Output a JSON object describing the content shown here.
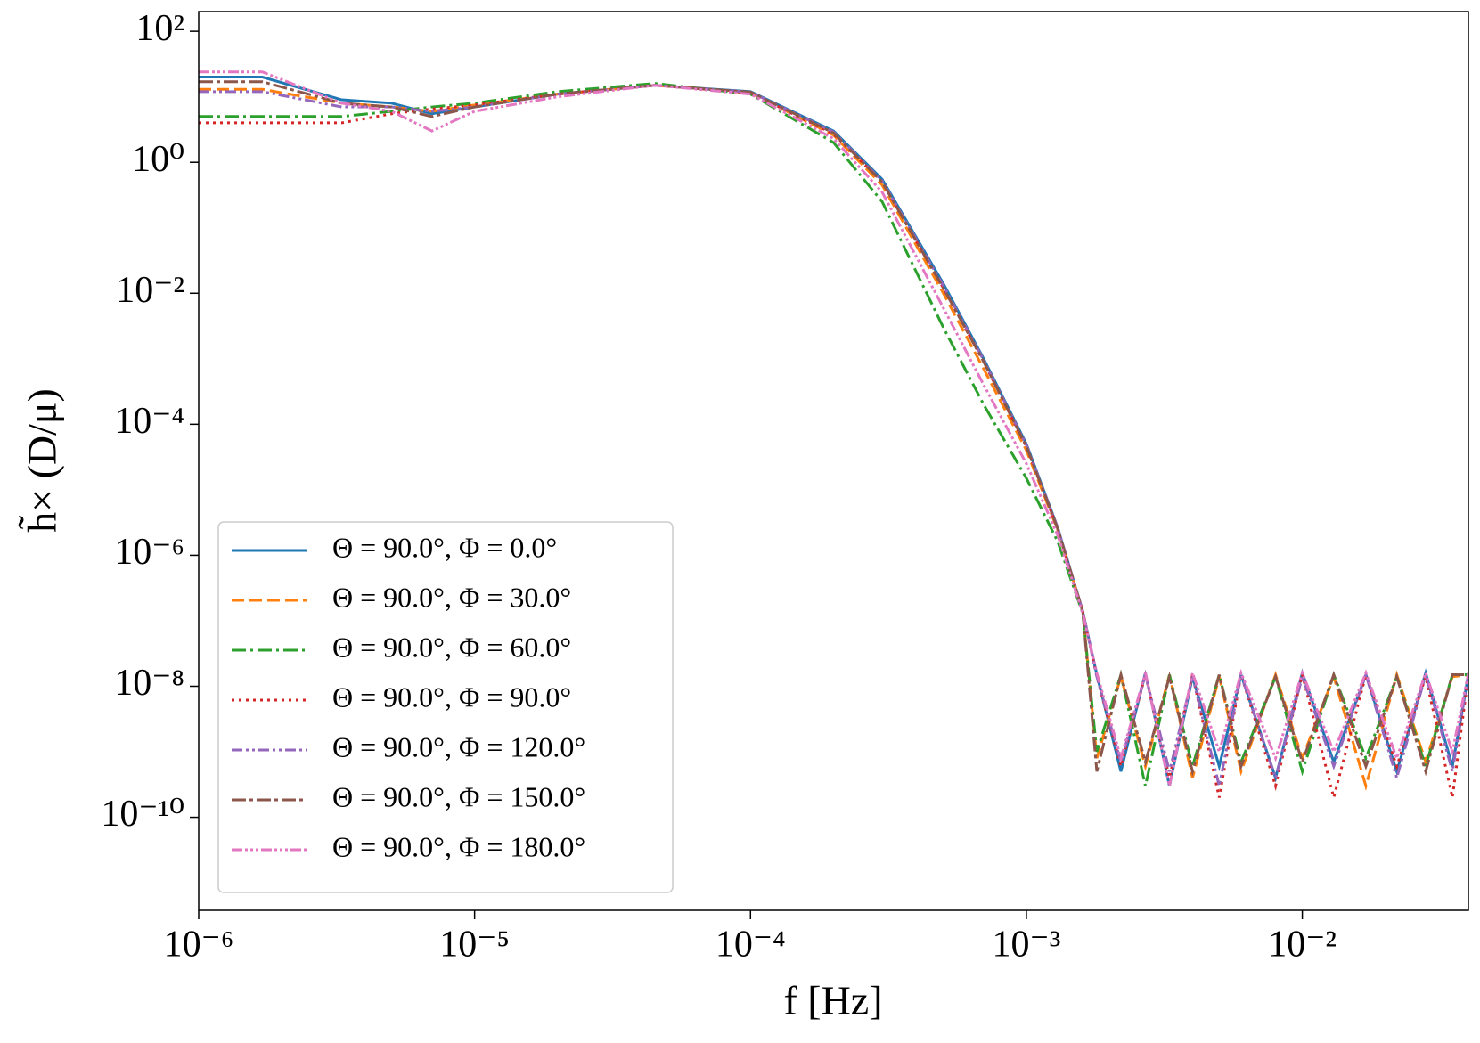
{
  "chart_data": {
    "type": "line",
    "xlabel": "f [Hz]",
    "ylabel": "h̃× (D/μ)",
    "xscale": "log",
    "yscale": "log",
    "xlim": [
      1e-06,
      0.04
    ],
    "ylim": [
      3.8e-12,
      200
    ],
    "xticks": [
      {
        "value": 1e-06,
        "label": "10⁻⁶"
      },
      {
        "value": 1e-05,
        "label": "10⁻⁵"
      },
      {
        "value": 0.0001,
        "label": "10⁻⁴"
      },
      {
        "value": 0.001,
        "label": "10⁻³"
      },
      {
        "value": 0.01,
        "label": "10⁻²"
      }
    ],
    "yticks": [
      {
        "value": 1e-10,
        "label": "10⁻¹⁰"
      },
      {
        "value": 1e-08,
        "label": "10⁻⁸"
      },
      {
        "value": 1e-06,
        "label": "10⁻⁶"
      },
      {
        "value": 0.0001,
        "label": "10⁻⁴"
      },
      {
        "value": 0.01,
        "label": "10⁻²"
      },
      {
        "value": 1,
        "label": "10⁰"
      },
      {
        "value": 100,
        "label": "10²"
      }
    ],
    "legend": "lower left",
    "x": [
      1e-06,
      1.7e-06,
      3.3e-06,
      5e-06,
      7e-06,
      1e-05,
      2e-05,
      4.5e-05,
      0.0001,
      0.0002,
      0.0003,
      0.0005,
      0.0007,
      0.001,
      0.0013,
      0.0016,
      0.0018,
      0.0022,
      0.0027,
      0.0033,
      0.004,
      0.005,
      0.006,
      0.008,
      0.01,
      0.013,
      0.017,
      0.022,
      0.028,
      0.035,
      0.04
    ],
    "series": [
      {
        "name": "Θ = 90.0°,  Φ = 0.0°",
        "color": "#1f77b4",
        "linestyle": "solid",
        "values": [
          20,
          20,
          9,
          8,
          5.5,
          7,
          11,
          15,
          12,
          3,
          0.55,
          0.014,
          0.001,
          5e-05,
          2.6e-06,
          1.4e-07,
          1.5e-08,
          5e-10,
          1.6e-08,
          3e-10,
          1.4e-08,
          6e-10,
          1.5e-08,
          4e-10,
          1.6e-08,
          7e-10,
          1.5e-08,
          5e-10,
          1.6e-08,
          6e-10,
          1.5e-08
        ]
      },
      {
        "name": "Θ = 90.0°,  Φ = 30.0°",
        "color": "#ff7f0e",
        "linestyle": "dashed",
        "values": [
          13,
          13,
          8,
          7,
          6,
          7.5,
          11,
          15,
          11.5,
          2.6,
          0.45,
          0.01,
          0.0007,
          4e-05,
          2.4e-06,
          1.4e-07,
          8e-10,
          1.4e-08,
          6e-10,
          1.5e-08,
          4e-10,
          1.4e-08,
          5e-10,
          1.5e-08,
          8e-10,
          1.4e-08,
          3e-10,
          1.5e-08,
          7e-10,
          1.4e-08,
          1.5e-08
        ]
      },
      {
        "name": "Θ = 90.0°,  Φ = 60.0°",
        "color": "#2ca02c",
        "linestyle": "dashdot",
        "values": [
          5,
          5,
          5,
          6,
          7,
          8,
          12,
          16,
          11,
          2,
          0.25,
          0.003,
          0.0002,
          1.5e-05,
          1.6e-06,
          1.3e-07,
          1e-09,
          1.5e-08,
          3e-10,
          1.5e-08,
          6e-10,
          1.5e-08,
          7e-10,
          1.4e-08,
          5e-10,
          1.5e-08,
          8e-10,
          1.4e-08,
          6e-10,
          1.5e-08,
          1.5e-08
        ]
      },
      {
        "name": "Θ = 90.0°,  Φ = 90.0°",
        "color": "#d62728",
        "linestyle": "dotted",
        "values": [
          4,
          4,
          4,
          5.5,
          6.5,
          7.5,
          11,
          15,
          11.5,
          2.7,
          0.5,
          0.012,
          0.0009,
          4.5e-05,
          2.5e-06,
          1.4e-07,
          1.4e-08,
          6e-10,
          1.5e-08,
          4e-10,
          1.5e-08,
          2e-10,
          1.5e-08,
          3e-10,
          1.5e-08,
          2e-10,
          1.5e-08,
          6e-10,
          1.4e-08,
          2e-10,
          1.5e-08
        ]
      },
      {
        "name": "Θ = 90.0°,  Φ = 120.0°",
        "color": "#9467bd",
        "linestyle": "dashdotdot",
        "values": [
          12,
          12,
          7,
          7,
          6,
          7,
          11,
          15,
          11.8,
          2.9,
          0.52,
          0.013,
          0.00095,
          4.8e-05,
          2.6e-06,
          1.4e-07,
          1.4e-08,
          7e-10,
          1.5e-08,
          5e-10,
          1.4e-08,
          3e-10,
          1.5e-08,
          4e-10,
          1.4e-08,
          6e-10,
          1.5e-08,
          4e-10,
          1.5e-08,
          5e-10,
          1.5e-08
        ]
      },
      {
        "name": "Θ = 90.0°,  Φ = 150.0°",
        "color": "#8c564b",
        "linestyle": "longdashdot",
        "values": [
          17,
          17,
          8,
          7,
          5,
          7,
          11,
          15,
          11.8,
          2.8,
          0.5,
          0.012,
          0.0009,
          4.6e-05,
          2.5e-06,
          1.4e-07,
          5e-10,
          1.5e-08,
          7e-10,
          1.4e-08,
          5e-10,
          1.5e-08,
          6e-10,
          1.4e-08,
          7e-10,
          1.5e-08,
          6e-10,
          1.4e-08,
          5e-10,
          1.5e-08,
          1.5e-08
        ]
      },
      {
        "name": "Θ = 90.0°,  Φ = 180.0°",
        "color": "#e377c2",
        "linestyle": "dashdotdotdot",
        "values": [
          24,
          24,
          8,
          6,
          3,
          6,
          10,
          15,
          11,
          2.3,
          0.35,
          0.006,
          0.0004,
          2.5e-05,
          2e-06,
          1.3e-07,
          1.6e-08,
          8e-10,
          1.6e-08,
          3e-10,
          1.6e-08,
          1e-09,
          1.6e-08,
          8e-10,
          1.6e-08,
          1e-09,
          1.6e-08,
          8e-10,
          1.6e-08,
          1e-09,
          1.6e-08
        ]
      }
    ]
  }
}
